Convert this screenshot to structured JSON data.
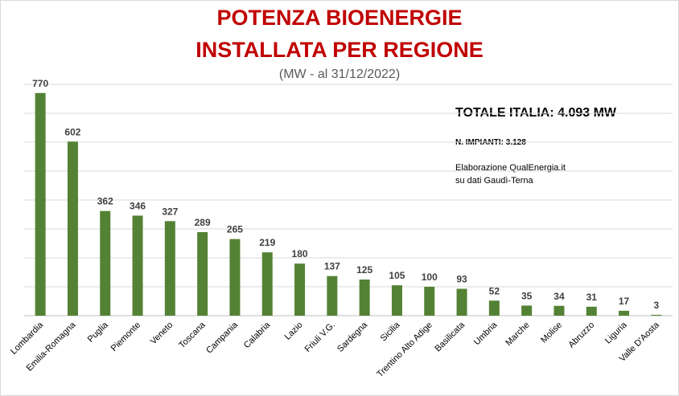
{
  "header": {
    "title_line1": "POTENZA BIOENERGIE",
    "title_line2": "INSTALLATA PER REGIONE",
    "subtitle": "(MW - al 31/12/2022)"
  },
  "info": {
    "total": "TOTALE ITALIA:  4.093 MW",
    "impianti": "N. IMPIANTI:  3.128",
    "credit_line1": "Elaborazione QualEnergia.it",
    "credit_line2": "su dati Gaudì-Terna"
  },
  "colors": {
    "bar": "#548235",
    "gridline": "#d9d9d9",
    "axis": "#bfbfbf",
    "title": "#c00000"
  },
  "chart_data": {
    "type": "bar",
    "categories": [
      "Lombardia",
      "Emilia-Romagna",
      "Puglia",
      "Piemonte",
      "Veneto",
      "Toscana",
      "Campania",
      "Calabria",
      "Lazio",
      "Friuli V.G.",
      "Sardegna",
      "Sicilia",
      "Trentino Alto Adige",
      "Basilicata",
      "Umbria",
      "Marche",
      "Molise",
      "Abruzzo",
      "Liguria",
      "Valle D'Aosta"
    ],
    "values": [
      770,
      602,
      362,
      346,
      327,
      289,
      265,
      219,
      180,
      137,
      125,
      105,
      100,
      93,
      52,
      35,
      34,
      31,
      17,
      3
    ],
    "ylim": [
      0,
      800
    ],
    "grid": true,
    "data_labels": true
  }
}
